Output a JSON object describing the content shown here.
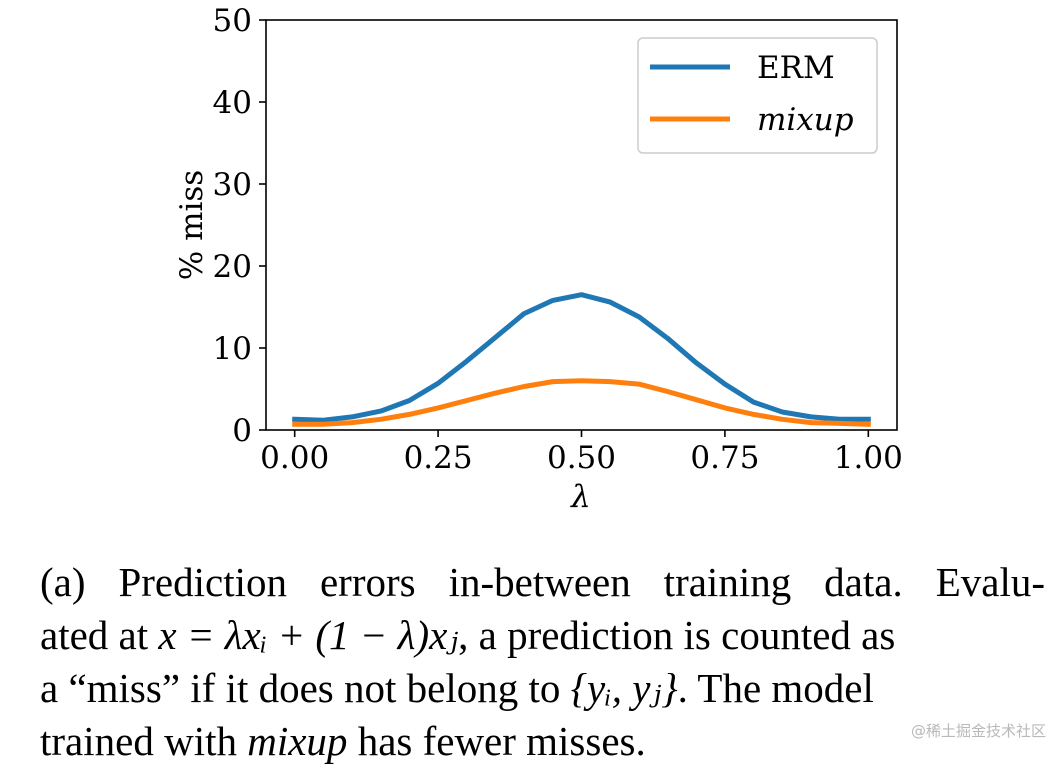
{
  "chart_data": {
    "type": "line",
    "xlabel": "λ",
    "ylabel": "% miss",
    "xlim": [
      -0.05,
      1.05
    ],
    "ylim": [
      0,
      50
    ],
    "xticks": [
      "0.00",
      "0.25",
      "0.50",
      "0.75",
      "1.00"
    ],
    "yticks": [
      "0",
      "10",
      "20",
      "30",
      "40",
      "50"
    ],
    "grid": false,
    "legend_position": "top-right",
    "x": [
      0.0,
      0.05,
      0.1,
      0.15,
      0.2,
      0.25,
      0.3,
      0.35,
      0.4,
      0.45,
      0.5,
      0.55,
      0.6,
      0.65,
      0.7,
      0.75,
      0.8,
      0.85,
      0.9,
      0.95,
      1.0
    ],
    "series": [
      {
        "name": "ERM",
        "color": "#1f77b4",
        "values": [
          1.3,
          1.2,
          1.6,
          2.3,
          3.6,
          5.7,
          8.4,
          11.3,
          14.2,
          15.8,
          16.5,
          15.6,
          13.8,
          11.2,
          8.2,
          5.6,
          3.4,
          2.2,
          1.6,
          1.3,
          1.3
        ]
      },
      {
        "name": "mixup",
        "color": "#ff7f0e",
        "italic": true,
        "values": [
          0.7,
          0.7,
          0.9,
          1.3,
          1.9,
          2.7,
          3.6,
          4.5,
          5.3,
          5.9,
          6.0,
          5.9,
          5.6,
          4.7,
          3.7,
          2.7,
          1.9,
          1.3,
          0.9,
          0.8,
          0.7
        ]
      }
    ]
  },
  "caption": {
    "line1": "(a) Prediction errors in-between training data. Evalu-",
    "line2_a": "ated at ",
    "line2_math": "x = λxᵢ + (1 − λ)xⱼ",
    "line2_b": ", a prediction is counted as",
    "line3_a": "a “miss” if it does not belong to ",
    "line3_math": "{yᵢ, yⱼ}",
    "line3_b": ". The model",
    "line4_a": "trained with ",
    "line4_em": "mixup",
    "line4_b": " has fewer misses."
  },
  "watermark": "@稀土掘金技术社区"
}
